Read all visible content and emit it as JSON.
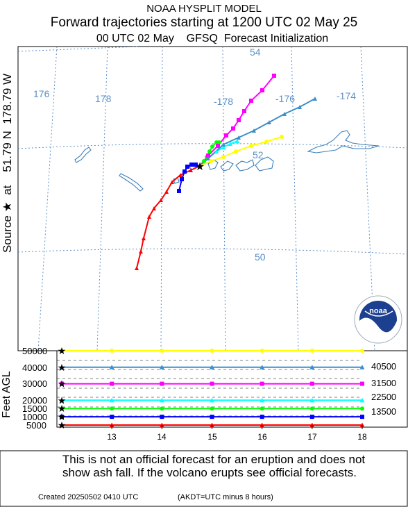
{
  "header": {
    "title": "NOAA HYSPLIT MODEL",
    "subtitle": "Forward trajectories starting at 1200 UTC 02 May 25",
    "init_line": "00 UTC 02 May    GFSQ  Forecast Initialization"
  },
  "side_label": "Source ★  at    51.79 N  178.79 W",
  "map": {
    "lon_labels": [
      "176",
      "178",
      "-178",
      "-176",
      "-174"
    ],
    "lat_labels": [
      "54",
      "52",
      "50"
    ],
    "source_marker": "★"
  },
  "height_axis": {
    "ylabel": "Feet AGL",
    "ticks": [
      "50000",
      "40000",
      "30000",
      "20000",
      "15000",
      "10000",
      "5000"
    ],
    "right_labels": [
      "40500",
      "31500",
      "22500",
      "13500"
    ],
    "x_ticks": [
      "13",
      "14",
      "15",
      "16",
      "17",
      "18"
    ]
  },
  "chart_data": {
    "type": "line",
    "title": "Forward trajectories starting at 1200 UTC 02 May 25",
    "xlabel": "",
    "ylabel": "Feet AGL",
    "x": [
      12,
      13,
      14,
      15,
      16,
      17,
      18
    ],
    "xlim": [
      12,
      18
    ],
    "ylim": [
      5000,
      50000
    ],
    "series": [
      {
        "color": "#ff0000",
        "marker": "triangle",
        "values": [
          5000,
          5000,
          5000,
          5000,
          5000,
          5000,
          5000
        ]
      },
      {
        "color": "#0000ff",
        "marker": "square",
        "values": [
          10000,
          10000,
          10000,
          10000,
          10000,
          10000,
          10000
        ]
      },
      {
        "color": "#00ff00",
        "marker": "circle",
        "values": [
          15000,
          15000,
          15000,
          15000,
          15000,
          15000,
          15000
        ]
      },
      {
        "color": "#00ffff",
        "marker": "triangle",
        "values": [
          20000,
          20000,
          20000,
          20000,
          20000,
          20000,
          20000
        ]
      },
      {
        "color": "#ff00ff",
        "marker": "square",
        "values": [
          30000,
          30000,
          30000,
          30000,
          30000,
          30000,
          30000
        ]
      },
      {
        "color": "#3c8fc9",
        "marker": "triangle",
        "values": [
          40000,
          40000,
          40000,
          40000,
          40000,
          40000,
          40000
        ]
      },
      {
        "color": "#ffff00",
        "marker": "circle",
        "values": [
          50000,
          50000,
          50000,
          50000,
          50000,
          50000,
          50000
        ]
      }
    ]
  },
  "logo": {
    "text": "noaa",
    "ring_text": "NATIONAL OCEANIC AND ATMOSPHERIC ADMINISTRATION"
  },
  "disclaimer": {
    "line1": "This is not an official forecast for an eruption and does not",
    "line2": "show ash fall. If the volcano erupts see official forecasts."
  },
  "footer": {
    "created": "Created 20250502 0410 UTC",
    "timezone": "(AKDT=UTC minus 8 hours)"
  },
  "colors": {
    "graticule": "#5b8fc7",
    "coast": "#3c7fb8"
  }
}
